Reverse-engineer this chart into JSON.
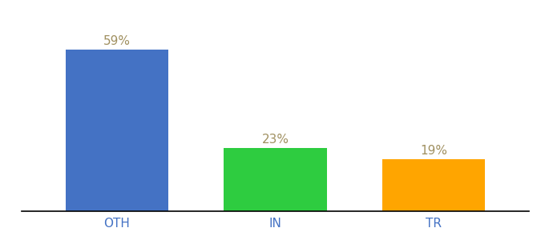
{
  "categories": [
    "OTH",
    "IN",
    "TR"
  ],
  "values": [
    59,
    23,
    19
  ],
  "bar_colors": [
    "#4472C4",
    "#2ECC40",
    "#FFA500"
  ],
  "labels": [
    "59%",
    "23%",
    "19%"
  ],
  "label_color": "#a09060",
  "ylim": [
    0,
    70
  ],
  "background_color": "#ffffff",
  "bar_width": 0.65,
  "label_fontsize": 11,
  "tick_fontsize": 11,
  "tick_color": "#4472C4"
}
